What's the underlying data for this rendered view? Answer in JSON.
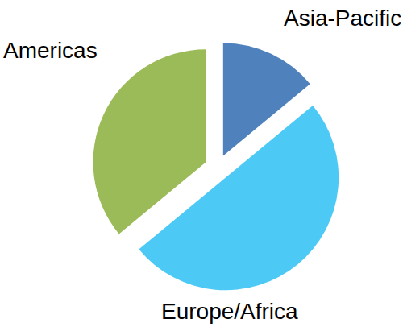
{
  "chart_data": {
    "type": "pie",
    "categories": [
      "Asia-Pacific",
      "Europe/Africa",
      "Americas"
    ],
    "values": [
      14,
      50,
      36
    ],
    "colors": [
      "#4f81bd",
      "#4dc9f6",
      "#9bbb59"
    ]
  }
}
